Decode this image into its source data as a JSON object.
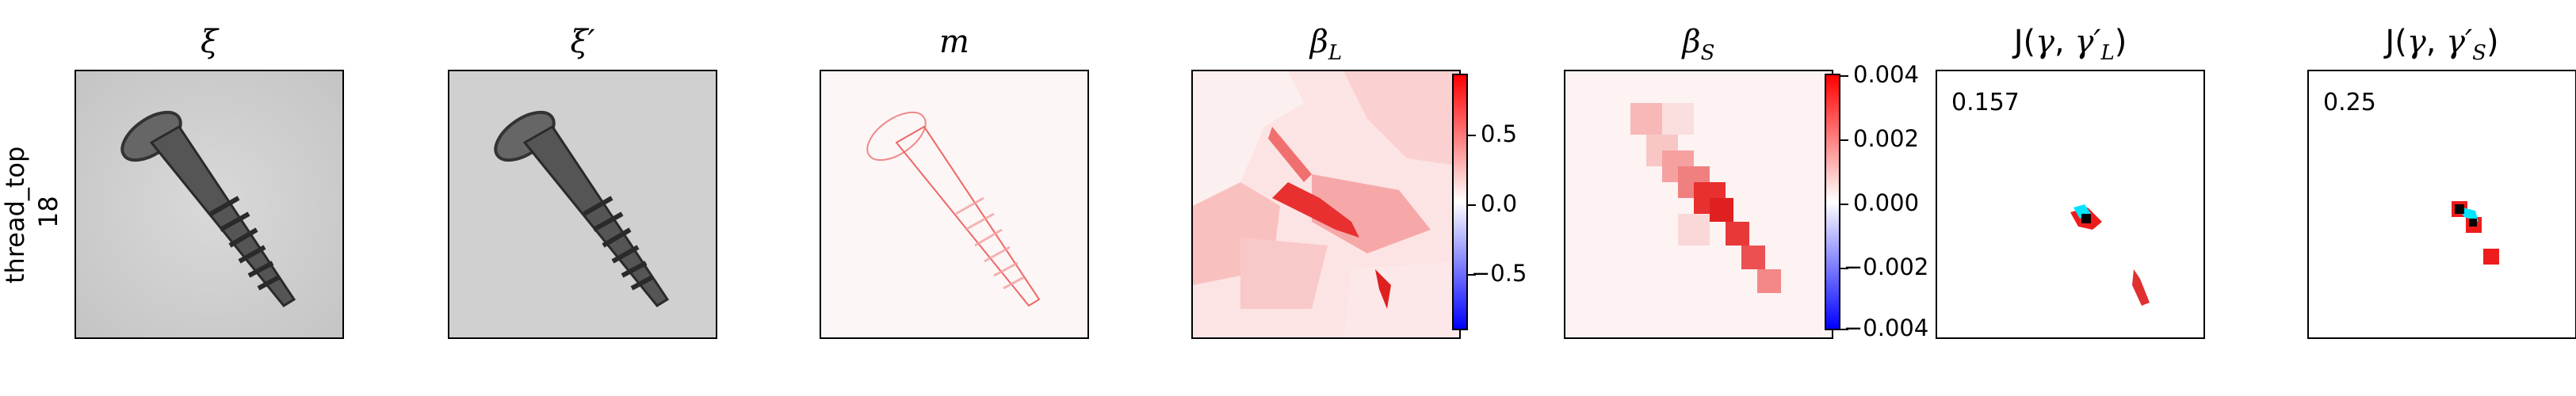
{
  "row_label": {
    "line1": "thread_top",
    "line2": "18"
  },
  "panels": {
    "xi": "ξ",
    "xi_prime": "ξ′",
    "m": "m",
    "beta_L": "βL",
    "beta_S": "βS",
    "j_L": "J(γ, γ′L)",
    "j_S": "J(γ, γ′S)"
  },
  "colorbar_L": {
    "ticks": [
      "0.5",
      "0.0",
      "−0.5"
    ]
  },
  "colorbar_S": {
    "ticks": [
      "0.004",
      "0.002",
      "0.000",
      "−0.002",
      "−0.004"
    ]
  },
  "scores": {
    "j_L": "0.157",
    "j_S": "0.25"
  },
  "colors": {
    "positive": "#ff0000",
    "negative": "#0000ff",
    "overlay": "#00e5ff"
  }
}
